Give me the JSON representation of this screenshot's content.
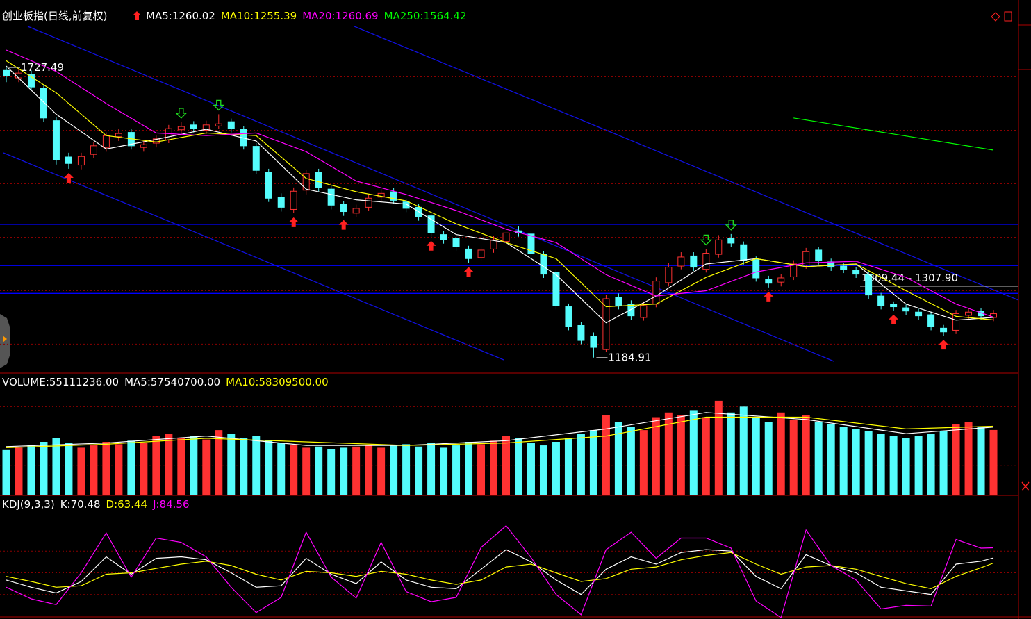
{
  "chart_data": [
    {
      "type": "candlestick",
      "title": "创业板指(日线,前复权)",
      "xlim": [
        -0.5,
        81
      ],
      "ylim": [
        1156,
        1838
      ],
      "yticks": [
        1210,
        1310,
        1410,
        1510,
        1610,
        1710
      ],
      "grid": true,
      "up_color": "#ff3232",
      "down_color": "#54fcfc",
      "open": [
        1722,
        1708,
        1715,
        1688,
        1628,
        1560,
        1545,
        1565,
        1578,
        1598,
        1606,
        1578,
        1586,
        1592,
        1611,
        1620,
        1610,
        1618,
        1626,
        1612,
        1580,
        1532,
        1485,
        1462,
        1498,
        1531,
        1500,
        1472,
        1455,
        1466,
        1485,
        1495,
        1476,
        1466,
        1450,
        1415,
        1408,
        1388,
        1372,
        1388,
        1402,
        1422,
        1416,
        1378,
        1345,
        1280,
        1245,
        1225,
        1200,
        1298,
        1285,
        1260,
        1285,
        1325,
        1356,
        1375,
        1350,
        1378,
        1408,
        1396,
        1368,
        1331,
        1326,
        1336,
        1358,
        1386,
        1364,
        1356,
        1348,
        1340,
        1300,
        1284,
        1278,
        1270,
        1265,
        1240,
        1236,
        1264,
        1272,
        1260
      ],
      "high": [
        1727.49,
        1724,
        1722,
        1694,
        1634,
        1568,
        1568,
        1588,
        1606,
        1612,
        1612,
        1590,
        1600,
        1620,
        1625,
        1627,
        1628,
        1640,
        1632,
        1618,
        1586,
        1538,
        1492,
        1503,
        1536,
        1538,
        1506,
        1478,
        1471,
        1490,
        1500,
        1502,
        1482,
        1472,
        1456,
        1422,
        1414,
        1394,
        1393,
        1412,
        1425,
        1430,
        1422,
        1384,
        1350,
        1286,
        1252,
        1232,
        1302,
        1305,
        1292,
        1290,
        1335,
        1362,
        1382,
        1382,
        1388,
        1414,
        1416,
        1402,
        1374,
        1338,
        1341,
        1367,
        1390,
        1392,
        1370,
        1362,
        1354,
        1346,
        1306,
        1290,
        1284,
        1276,
        1271,
        1246,
        1274,
        1277,
        1278,
        1274
      ],
      "low": [
        1700,
        1700,
        1684,
        1625,
        1546,
        1538,
        1537,
        1558,
        1570,
        1590,
        1574,
        1570,
        1578,
        1586,
        1604,
        1606,
        1603,
        1612,
        1606,
        1574,
        1528,
        1476,
        1458,
        1455,
        1490,
        1496,
        1462,
        1450,
        1448,
        1459,
        1478,
        1472,
        1457,
        1441,
        1411,
        1398,
        1385,
        1362,
        1365,
        1381,
        1395,
        1411,
        1373,
        1334,
        1275,
        1236,
        1210,
        1184.91,
        1196,
        1275,
        1256,
        1254,
        1279,
        1318,
        1350,
        1347,
        1344,
        1372,
        1392,
        1359,
        1327,
        1316,
        1318,
        1330,
        1351,
        1359,
        1347,
        1343,
        1334,
        1295,
        1275,
        1273,
        1265,
        1256,
        1236,
        1226,
        1229,
        1257,
        1256,
        1253
      ],
      "close": [
        1712,
        1717,
        1691,
        1633,
        1555,
        1548,
        1561,
        1581,
        1600,
        1604,
        1581,
        1583,
        1594,
        1613,
        1617,
        1613,
        1620,
        1622,
        1613,
        1581,
        1535,
        1483,
        1466,
        1496,
        1529,
        1503,
        1470,
        1458,
        1464,
        1483,
        1492,
        1479,
        1464,
        1448,
        1418,
        1405,
        1392,
        1370,
        1386,
        1405,
        1418,
        1418,
        1380,
        1341,
        1282,
        1243,
        1217,
        1204,
        1295,
        1282,
        1263,
        1282,
        1328,
        1354,
        1373,
        1354,
        1380,
        1405,
        1399,
        1366,
        1334,
        1324,
        1334,
        1360,
        1383,
        1366,
        1354,
        1350,
        1341,
        1302,
        1282,
        1280,
        1272,
        1263,
        1243,
        1233,
        1267,
        1270,
        1263,
        1267
      ],
      "lines": [
        {
          "label": "MA5:",
          "value": 1260.02,
          "color": "#ffffff",
          "x": [
            0,
            4,
            8,
            12,
            16,
            20,
            24,
            28,
            32,
            36,
            40,
            44,
            48,
            52,
            56,
            60,
            64,
            68,
            72,
            76,
            79
          ],
          "values": [
            1730,
            1640,
            1575,
            1593,
            1612,
            1590,
            1500,
            1480,
            1472,
            1415,
            1400,
            1340,
            1250,
            1300,
            1360,
            1370,
            1355,
            1360,
            1285,
            1255,
            1260.02
          ]
        },
        {
          "label": "MA10:",
          "value": 1255.39,
          "color": "#ffff00",
          "x": [
            0,
            4,
            8,
            12,
            16,
            20,
            24,
            28,
            32,
            36,
            40,
            44,
            48,
            52,
            56,
            60,
            64,
            68,
            72,
            76,
            79
          ],
          "values": [
            1740,
            1680,
            1600,
            1588,
            1605,
            1600,
            1520,
            1495,
            1478,
            1435,
            1400,
            1370,
            1280,
            1285,
            1335,
            1370,
            1355,
            1360,
            1310,
            1262,
            1255.39
          ]
        },
        {
          "label": "MA20:",
          "value": 1260.69,
          "color": "#ff00ff",
          "x": [
            0,
            4,
            8,
            12,
            16,
            20,
            24,
            28,
            32,
            36,
            40,
            44,
            48,
            52,
            56,
            60,
            64,
            68,
            72,
            76,
            79
          ],
          "values": [
            1760,
            1720,
            1660,
            1605,
            1600,
            1605,
            1570,
            1515,
            1490,
            1460,
            1425,
            1400,
            1340,
            1300,
            1310,
            1345,
            1362,
            1365,
            1335,
            1285,
            1260.69
          ]
        },
        {
          "label": "MA250:",
          "value": 1564.42,
          "color": "#00ff00",
          "x": [
            63,
            79
          ],
          "values": [
            1633,
            1573
          ]
        }
      ],
      "hlines": [
        1434,
        1357,
        1305
      ],
      "hline_color": "#0000ff",
      "annotations": [
        {
          "x": 0,
          "value": 1727.49
        },
        {
          "x": 47,
          "value": 1184.91
        }
      ],
      "range_label": "1309.44 - 1307.90",
      "buy_signals": [
        5,
        23,
        27,
        34,
        37,
        61,
        71,
        75
      ],
      "sell_signals": [
        14,
        17,
        56,
        58
      ]
    },
    {
      "type": "bar",
      "label": "VOLUME:",
      "value": 55111236,
      "value_label": "55111236.00",
      "ylim": [
        0,
        90000000
      ],
      "yticks": [
        25000000,
        50000000,
        75000000
      ],
      "grid": true,
      "values": [
        38000000,
        40000000,
        42000000,
        45000000,
        48000000,
        44000000,
        40000000,
        42000000,
        45000000,
        43000000,
        46000000,
        44000000,
        50000000,
        52000000,
        48000000,
        50000000,
        47000000,
        55000000,
        52000000,
        48000000,
        50000000,
        46000000,
        44000000,
        42000000,
        40000000,
        41000000,
        39000000,
        40000000,
        41000000,
        42000000,
        40000000,
        42000000,
        43000000,
        41000000,
        44000000,
        40000000,
        42000000,
        45000000,
        43000000,
        46000000,
        50000000,
        48000000,
        44000000,
        42000000,
        45000000,
        48000000,
        52000000,
        55000000,
        68000000,
        62000000,
        58000000,
        55000000,
        66000000,
        70000000,
        68000000,
        72000000,
        66000000,
        80000000,
        70000000,
        75000000,
        66000000,
        62000000,
        70000000,
        64000000,
        68000000,
        62000000,
        60000000,
        58000000,
        56000000,
        54000000,
        52000000,
        50000000,
        48000000,
        50000000,
        52000000,
        54000000,
        60000000,
        62000000,
        58000000,
        55111236
      ],
      "lines": [
        {
          "label": "MA5:",
          "value": 57540700,
          "value_label": "57540700.00",
          "color": "#ffffff",
          "x": [
            0,
            8,
            16,
            24,
            32,
            40,
            48,
            56,
            64,
            72,
            79
          ],
          "values": [
            41000000,
            44000000,
            50000000,
            42000000,
            42000000,
            46000000,
            56000000,
            70000000,
            64000000,
            52000000,
            57540700
          ]
        },
        {
          "label": "MA10:",
          "value": 58309500,
          "value_label": "58309500.00",
          "color": "#ffff00",
          "x": [
            0,
            8,
            16,
            24,
            32,
            40,
            48,
            56,
            64,
            72,
            79
          ],
          "values": [
            40000000,
            43000000,
            48000000,
            45000000,
            42000000,
            44000000,
            50000000,
            66000000,
            66000000,
            56000000,
            58309500
          ]
        }
      ]
    },
    {
      "type": "line",
      "title": "KDJ(9,3,3)",
      "ylim": [
        -11,
        133
      ],
      "yticks": [
        20,
        50,
        80
      ],
      "grid": true,
      "x": [
        0,
        2,
        4,
        6,
        8,
        10,
        12,
        14,
        16,
        18,
        20,
        22,
        24,
        26,
        28,
        30,
        32,
        34,
        36,
        38,
        40,
        42,
        44,
        46,
        48,
        50,
        52,
        54,
        56,
        58,
        60,
        62,
        64,
        66,
        68,
        70,
        72,
        74,
        76,
        78,
        79
      ],
      "lines": [
        {
          "label": "K:",
          "value": 70.48,
          "color": "#ffffff",
          "values": [
            40,
            30,
            22,
            38,
            72,
            48,
            70,
            72,
            68,
            50,
            30,
            32,
            70,
            48,
            35,
            65,
            40,
            30,
            28,
            55,
            82,
            65,
            40,
            20,
            55,
            72,
            62,
            78,
            82,
            80,
            45,
            28,
            75,
            60,
            50,
            30,
            25,
            20,
            62,
            66,
            70.48
          ]
        },
        {
          "label": "D:",
          "value": 63.44,
          "color": "#ffff00",
          "values": [
            45,
            38,
            30,
            32,
            48,
            50,
            56,
            62,
            66,
            60,
            48,
            40,
            52,
            50,
            45,
            52,
            48,
            40,
            34,
            40,
            58,
            62,
            50,
            38,
            42,
            55,
            58,
            68,
            74,
            78,
            62,
            48,
            58,
            60,
            55,
            45,
            35,
            28,
            45,
            57,
            63.44
          ]
        },
        {
          "label": "J:",
          "value": 84.56,
          "color": "#ff00ff",
          "values": [
            30,
            14,
            6,
            50,
            105,
            44,
            98,
            92,
            72,
            30,
            -5,
            16,
            106,
            44,
            15,
            92,
            24,
            10,
            16,
            85,
            115,
            71,
            20,
            -8,
            82,
            106,
            70,
            98,
            98,
            84,
            11,
            -12,
            109,
            60,
            40,
            0,
            5,
            4,
            96,
            84,
            84.56
          ]
        }
      ]
    }
  ]
}
